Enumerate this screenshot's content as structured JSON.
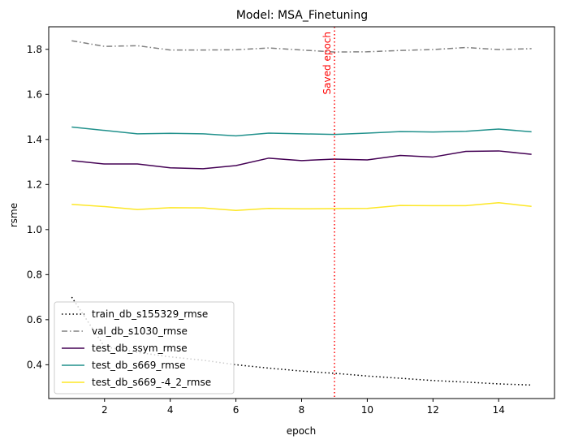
{
  "chart_data": {
    "type": "line",
    "title": "Model: MSA_Finetuning",
    "xlabel": "epoch",
    "ylabel": "rsme",
    "xlim": [
      0.3,
      15.7
    ],
    "ylim": [
      0.25,
      1.9
    ],
    "x_ticks": [
      2,
      4,
      6,
      8,
      10,
      12,
      14
    ],
    "y_ticks": [
      0.4,
      0.6,
      0.8,
      1.0,
      1.2,
      1.4,
      1.6,
      1.8
    ],
    "x": [
      1,
      2,
      3,
      4,
      5,
      6,
      7,
      8,
      9,
      10,
      11,
      12,
      13,
      14,
      15
    ],
    "grid": false,
    "legend_position": "lower-left",
    "series": [
      {
        "name": "train_db_s155329_rmse",
        "color": "#000000",
        "style": "dotted",
        "values": [
          0.7,
          0.48,
          0.455,
          0.435,
          0.42,
          0.4,
          0.385,
          0.372,
          0.362,
          0.35,
          0.34,
          0.33,
          0.323,
          0.315,
          0.31
        ]
      },
      {
        "name": "val_db_s1030_rmse",
        "color": "#808080",
        "style": "dashdot",
        "values": [
          1.838,
          1.813,
          1.816,
          1.797,
          1.797,
          1.798,
          1.806,
          1.797,
          1.788,
          1.789,
          1.795,
          1.799,
          1.808,
          1.799,
          1.803
        ]
      },
      {
        "name": "test_db_ssym_rmse",
        "color": "#440154",
        "style": "solid",
        "values": [
          1.306,
          1.291,
          1.291,
          1.274,
          1.27,
          1.284,
          1.317,
          1.306,
          1.313,
          1.309,
          1.329,
          1.322,
          1.347,
          1.349,
          1.334
        ]
      },
      {
        "name": "test_db_s669_rmse",
        "color": "#21918c",
        "style": "solid",
        "values": [
          1.455,
          1.44,
          1.425,
          1.427,
          1.425,
          1.416,
          1.428,
          1.425,
          1.422,
          1.428,
          1.435,
          1.433,
          1.436,
          1.446,
          1.434
        ]
      },
      {
        "name": "test_db_s669_-4_2_rmse",
        "color": "#fde725",
        "style": "solid",
        "values": [
          1.112,
          1.102,
          1.089,
          1.097,
          1.096,
          1.085,
          1.094,
          1.092,
          1.093,
          1.094,
          1.107,
          1.106,
          1.106,
          1.119,
          1.103
        ]
      }
    ],
    "annotations": [
      {
        "type": "vline",
        "x": 9,
        "color": "#ff0000",
        "style": "dotted",
        "label": "Saved epoch"
      }
    ]
  }
}
